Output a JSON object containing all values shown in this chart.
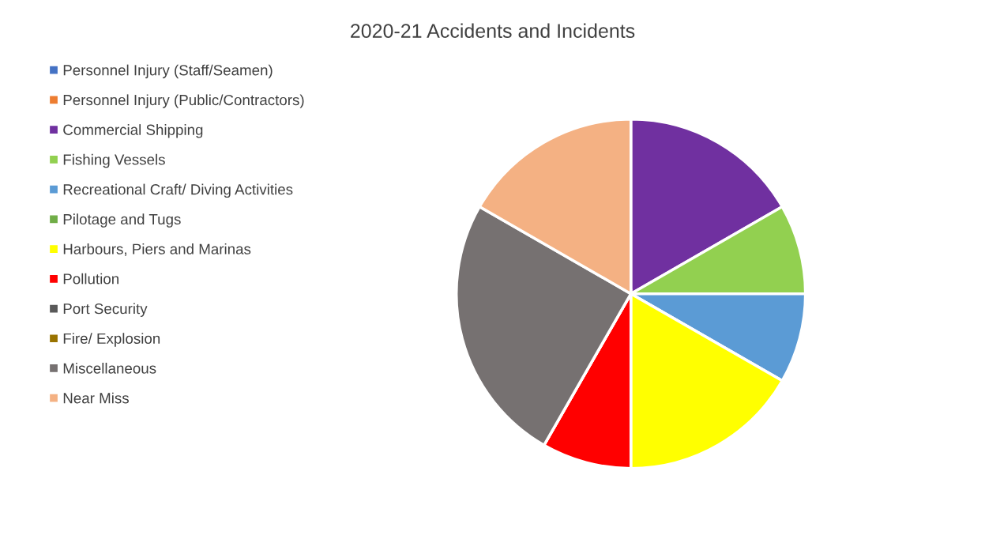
{
  "chart_data": {
    "type": "pie",
    "title": "2020-21 Accidents and Incidents",
    "categories": [
      "Personnel Injury (Staff/Seamen)",
      "Personnel Injury (Public/Contractors)",
      "Commercial Shipping",
      "Fishing Vessels",
      "Recreational Craft/ Diving Activities",
      "Pilotage and Tugs",
      "Harbours, Piers and Marinas",
      "Pollution",
      "Port Security",
      "Fire/ Explosion",
      "Miscellaneous",
      "Near Miss"
    ],
    "values": [
      0,
      0,
      16.7,
      8.3,
      8.3,
      0,
      16.7,
      8.3,
      0,
      0,
      25,
      16.7
    ],
    "colors": [
      "#4472c4",
      "#ed7d31",
      "#7030a0",
      "#92d050",
      "#5b9bd5",
      "#70ad47",
      "#ffff00",
      "#ff0000",
      "#595959",
      "#997300",
      "#767171",
      "#f4b183"
    ],
    "legend": "left"
  }
}
